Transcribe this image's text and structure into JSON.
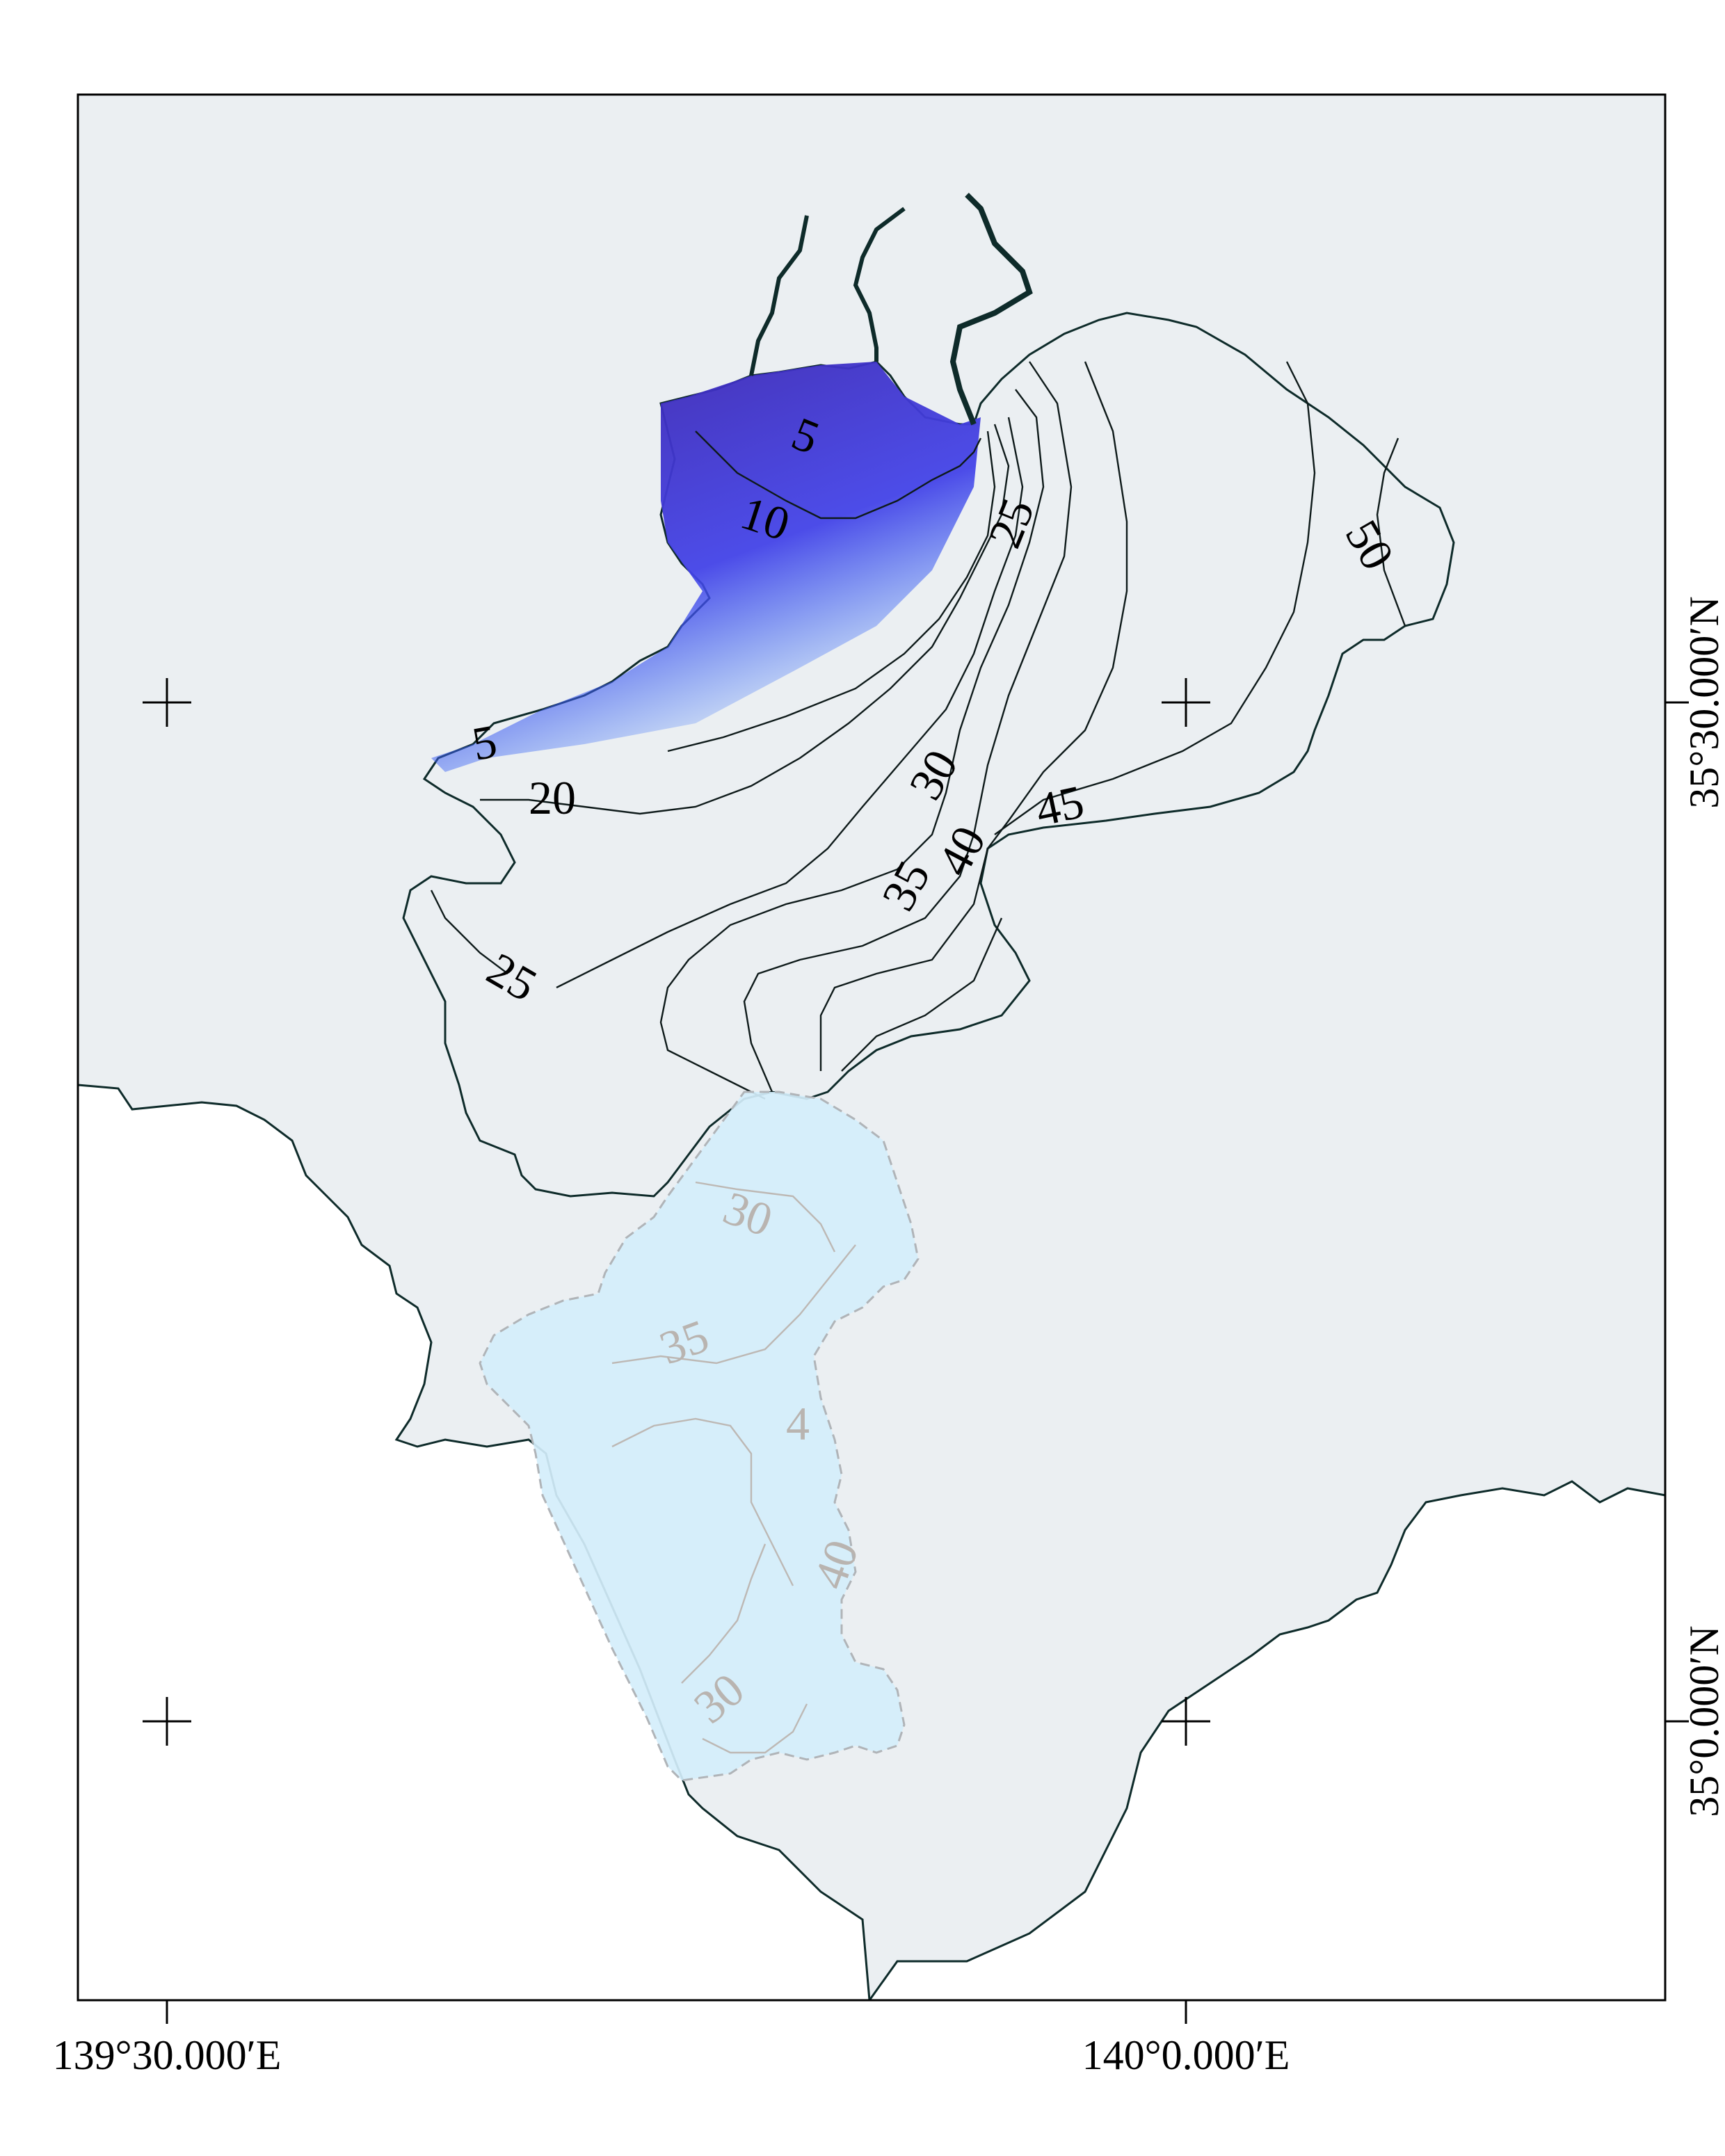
{
  "map": {
    "type": "contour map",
    "axes": {
      "x_ticks": [
        "139°30.000′E",
        "140°0.000′E"
      ],
      "y_ticks": [
        "35°30.000′N",
        "35°0.000′N"
      ]
    },
    "contour_levels": [
      5,
      10,
      15,
      20,
      25,
      30,
      35,
      40,
      45,
      50
    ],
    "contour_labels": [
      {
        "text": "5"
      },
      {
        "text": "10"
      },
      {
        "text": "5"
      },
      {
        "text": "20"
      },
      {
        "text": "25"
      },
      {
        "text": "25"
      },
      {
        "text": "30"
      },
      {
        "text": "35"
      },
      {
        "text": "40"
      },
      {
        "text": "45"
      },
      {
        "text": "50"
      }
    ],
    "faded_labels": [
      {
        "text": "30"
      },
      {
        "text": "35"
      },
      {
        "text": "4"
      },
      {
        "text": "40"
      },
      {
        "text": "30"
      }
    ],
    "colors": {
      "land": "#ffffff",
      "background": "#ebeff2",
      "low": "#3b21a6",
      "mid": "#2f7dff",
      "high": "#66cc6a",
      "mask": "#d4eefb"
    }
  }
}
